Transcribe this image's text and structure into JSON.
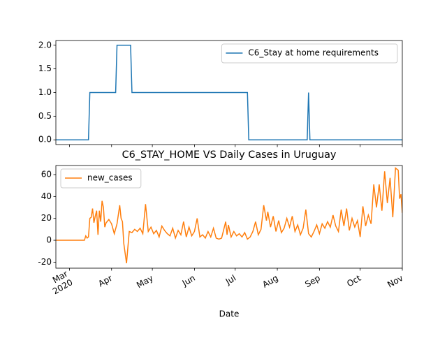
{
  "chart_data": [
    {
      "type": "line",
      "xlim": [
        "2020-02-20",
        "2020-11-01"
      ],
      "xticks": [
        "2020-03-01",
        "2020-04-01",
        "2020-05-01",
        "2020-06-01",
        "2020-07-01",
        "2020-08-01",
        "2020-09-01",
        "2020-10-01",
        "2020-11-01"
      ],
      "ylim": [
        -0.1,
        2.1
      ],
      "yticks": [
        {
          "value": 0,
          "label": "0.0"
        },
        {
          "value": 0.5,
          "label": "0.5"
        },
        {
          "value": 1,
          "label": "1.0"
        },
        {
          "value": 1.5,
          "label": "1.5"
        },
        {
          "value": 2,
          "label": "2.0"
        }
      ],
      "legend": "upper right",
      "x": [
        "2020-02-20",
        "2020-03-15",
        "2020-03-16",
        "2020-04-04",
        "2020-04-05",
        "2020-04-15",
        "2020-04-16",
        "2020-07-10",
        "2020-07-11",
        "2020-08-23",
        "2020-08-24",
        "2020-08-25",
        "2020-11-01"
      ],
      "series": [
        {
          "name": "C6_Stay at home requirements",
          "color": "#1f77b4",
          "values": [
            0,
            0,
            1,
            1,
            2,
            2,
            1,
            1,
            0,
            0,
            1,
            0,
            0
          ]
        }
      ]
    },
    {
      "type": "line",
      "title": "C6_STAY_HOME VS Daily Cases in Uruguay",
      "xlabel": "Date",
      "xlim": [
        "2020-02-20",
        "2020-11-01"
      ],
      "xticks": [
        {
          "value": "2020-03-01",
          "label": "Mar\n2020"
        },
        {
          "value": "2020-04-01",
          "label": "Apr"
        },
        {
          "value": "2020-05-01",
          "label": "May"
        },
        {
          "value": "2020-06-01",
          "label": "Jun"
        },
        {
          "value": "2020-07-01",
          "label": "Jul"
        },
        {
          "value": "2020-08-01",
          "label": "Aug"
        },
        {
          "value": "2020-09-01",
          "label": "Sep"
        },
        {
          "value": "2020-10-01",
          "label": "Oct"
        },
        {
          "value": "2020-11-01",
          "label": "Nov"
        }
      ],
      "ylim": [
        -25.5,
        68.3
      ],
      "yticks": [
        -20,
        0,
        20,
        40,
        60
      ],
      "legend": "upper left",
      "x": [
        "2020-02-20",
        "2020-03-12",
        "2020-03-13",
        "2020-03-14",
        "2020-03-15",
        "2020-03-16",
        "2020-03-17",
        "2020-03-18",
        "2020-03-19",
        "2020-03-20",
        "2020-03-21",
        "2020-03-22",
        "2020-03-23",
        "2020-03-24",
        "2020-03-25",
        "2020-03-26",
        "2020-03-27",
        "2020-03-28",
        "2020-03-30",
        "2020-04-01",
        "2020-04-03",
        "2020-04-05",
        "2020-04-07",
        "2020-04-08",
        "2020-04-09",
        "2020-04-10",
        "2020-04-12",
        "2020-04-14",
        "2020-04-16",
        "2020-04-18",
        "2020-04-20",
        "2020-04-22",
        "2020-04-24",
        "2020-04-26",
        "2020-04-28",
        "2020-04-30",
        "2020-05-02",
        "2020-05-04",
        "2020-05-06",
        "2020-05-08",
        "2020-05-10",
        "2020-05-12",
        "2020-05-14",
        "2020-05-16",
        "2020-05-18",
        "2020-05-20",
        "2020-05-22",
        "2020-05-24",
        "2020-05-26",
        "2020-05-28",
        "2020-05-30",
        "2020-06-01",
        "2020-06-03",
        "2020-06-05",
        "2020-06-07",
        "2020-06-09",
        "2020-06-11",
        "2020-06-13",
        "2020-06-15",
        "2020-06-17",
        "2020-06-19",
        "2020-06-21",
        "2020-06-24",
        "2020-06-25",
        "2020-06-26",
        "2020-06-28",
        "2020-06-30",
        "2020-07-02",
        "2020-07-04",
        "2020-07-06",
        "2020-07-08",
        "2020-07-10",
        "2020-07-12",
        "2020-07-14",
        "2020-07-16",
        "2020-07-18",
        "2020-07-20",
        "2020-07-22",
        "2020-07-24",
        "2020-07-25",
        "2020-07-27",
        "2020-07-29",
        "2020-07-31",
        "2020-08-02",
        "2020-08-04",
        "2020-08-06",
        "2020-08-08",
        "2020-08-10",
        "2020-08-12",
        "2020-08-14",
        "2020-08-16",
        "2020-08-18",
        "2020-08-20",
        "2020-08-22",
        "2020-08-24",
        "2020-08-26",
        "2020-08-28",
        "2020-08-30",
        "2020-09-01",
        "2020-09-03",
        "2020-09-05",
        "2020-09-07",
        "2020-09-09",
        "2020-09-11",
        "2020-09-13",
        "2020-09-15",
        "2020-09-17",
        "2020-09-19",
        "2020-09-21",
        "2020-09-23",
        "2020-09-25",
        "2020-09-27",
        "2020-09-29",
        "2020-10-01",
        "2020-10-03",
        "2020-10-05",
        "2020-10-07",
        "2020-10-09",
        "2020-10-11",
        "2020-10-13",
        "2020-10-15",
        "2020-10-17",
        "2020-10-19",
        "2020-10-21",
        "2020-10-23",
        "2020-10-25",
        "2020-10-27",
        "2020-10-29",
        "2020-10-30",
        "2020-10-31",
        "2020-11-01"
      ],
      "series": [
        {
          "name": "new_cases",
          "color": "#ff7f0e",
          "values": [
            0,
            0,
            4,
            2,
            3,
            20,
            21,
            29,
            16,
            22,
            27,
            5,
            27,
            17,
            36,
            30,
            12,
            16,
            19,
            15,
            6,
            15,
            32,
            20,
            17,
            -3,
            -21,
            8,
            7,
            10,
            8,
            11,
            6,
            33,
            8,
            12,
            6,
            9,
            3,
            13,
            9,
            6,
            4,
            11,
            2,
            9,
            5,
            17,
            3,
            12,
            4,
            8,
            20,
            3,
            5,
            2,
            8,
            3,
            11,
            2,
            1,
            2,
            17,
            5,
            14,
            3,
            8,
            4,
            6,
            3,
            7,
            1,
            3,
            8,
            17,
            5,
            10,
            32,
            18,
            26,
            12,
            22,
            8,
            18,
            7,
            11,
            20,
            12,
            22,
            8,
            14,
            5,
            11,
            28,
            6,
            3,
            8,
            14,
            6,
            15,
            11,
            17,
            12,
            23,
            13,
            8,
            28,
            13,
            29,
            9,
            20,
            12,
            18,
            3,
            31,
            13,
            23,
            15,
            51,
            30,
            51,
            27,
            63,
            34,
            57,
            21,
            66,
            64,
            38,
            42,
            25
          ]
        }
      ]
    }
  ]
}
